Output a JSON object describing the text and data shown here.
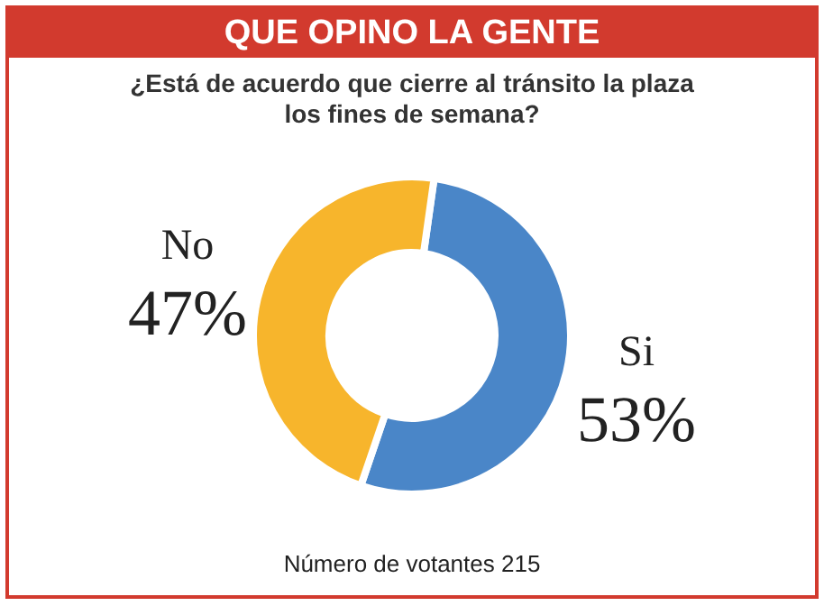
{
  "chart_data": {
    "type": "donut",
    "title": "QUE OPINO LA GENTE",
    "subtitle": "¿Está de acuerdo que cierre al tránsito la plaza los fines de semana?",
    "categories": [
      "Si",
      "No"
    ],
    "values": [
      53,
      47
    ],
    "value_labels": [
      "53%",
      "47%"
    ],
    "colors": [
      "#4a86c8",
      "#f7b52c"
    ],
    "annotations": [
      "Número de votantes 215"
    ]
  }
}
